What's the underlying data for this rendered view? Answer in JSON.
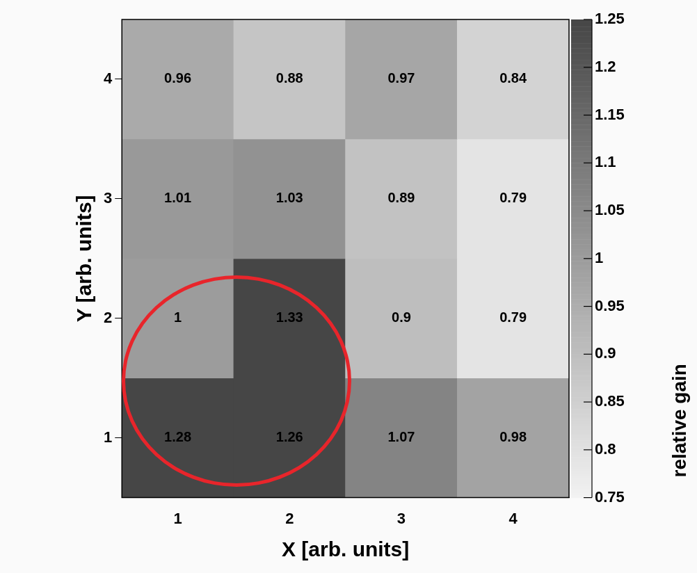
{
  "chart_data": {
    "type": "heatmap",
    "xlabel": "X [arb. units]",
    "ylabel": "Y [arb. units]",
    "clabel": "relative gain",
    "categories": [
      "1",
      "2",
      "3",
      "4"
    ],
    "y_categories": [
      "4",
      "3",
      "2",
      "1"
    ],
    "cells": [
      [
        0.96,
        0.88,
        0.97,
        0.84
      ],
      [
        1.01,
        1.03,
        0.89,
        0.79
      ],
      [
        1,
        1.33,
        0.9,
        0.79
      ],
      [
        1.28,
        1.26,
        1.07,
        0.98
      ]
    ],
    "data_labels": true,
    "clim": [
      0.75,
      1.25
    ],
    "cticks": [
      0.75,
      0.8,
      0.85,
      0.9,
      0.95,
      1,
      1.05,
      1.1,
      1.15,
      1.2,
      1.25
    ]
  }
}
